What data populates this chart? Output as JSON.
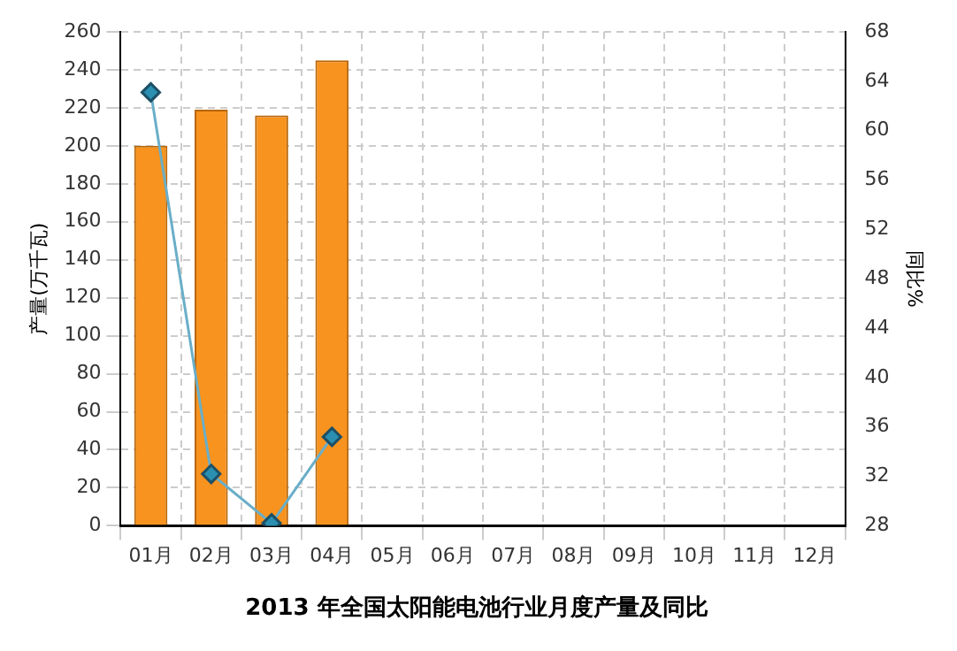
{
  "chart_data": {
    "type": "bar",
    "title": "2013 年全国太阳能电池行业月度产量及同比",
    "ylabel": "产量(万千瓦)",
    "y2label": "同比%",
    "categories": [
      "01月",
      "02月",
      "03月",
      "04月",
      "05月",
      "06月",
      "07月",
      "08月",
      "09月",
      "10月",
      "11月",
      "12月"
    ],
    "series": [
      {
        "color": "#f7931e",
        "values": [
          200,
          219,
          216,
          245,
          null,
          null,
          null,
          null,
          null,
          null,
          null,
          null
        ]
      },
      {
        "type": "line",
        "axis": "y2",
        "color": "#6aaec8",
        "marker": "diamond",
        "values": [
          63.1,
          32.2,
          28.2,
          35.2,
          null,
          null,
          null,
          null,
          null,
          null,
          null,
          null
        ]
      }
    ],
    "ylim": [
      0,
      260
    ],
    "yticks": [
      0,
      20,
      40,
      60,
      80,
      100,
      120,
      140,
      160,
      180,
      200,
      220,
      240,
      260
    ],
    "y2lim": [
      28,
      68
    ],
    "y2ticks": [
      28,
      32,
      36,
      40,
      44,
      48,
      52,
      56,
      60,
      64,
      68
    ],
    "grid": true,
    "legend": false
  }
}
